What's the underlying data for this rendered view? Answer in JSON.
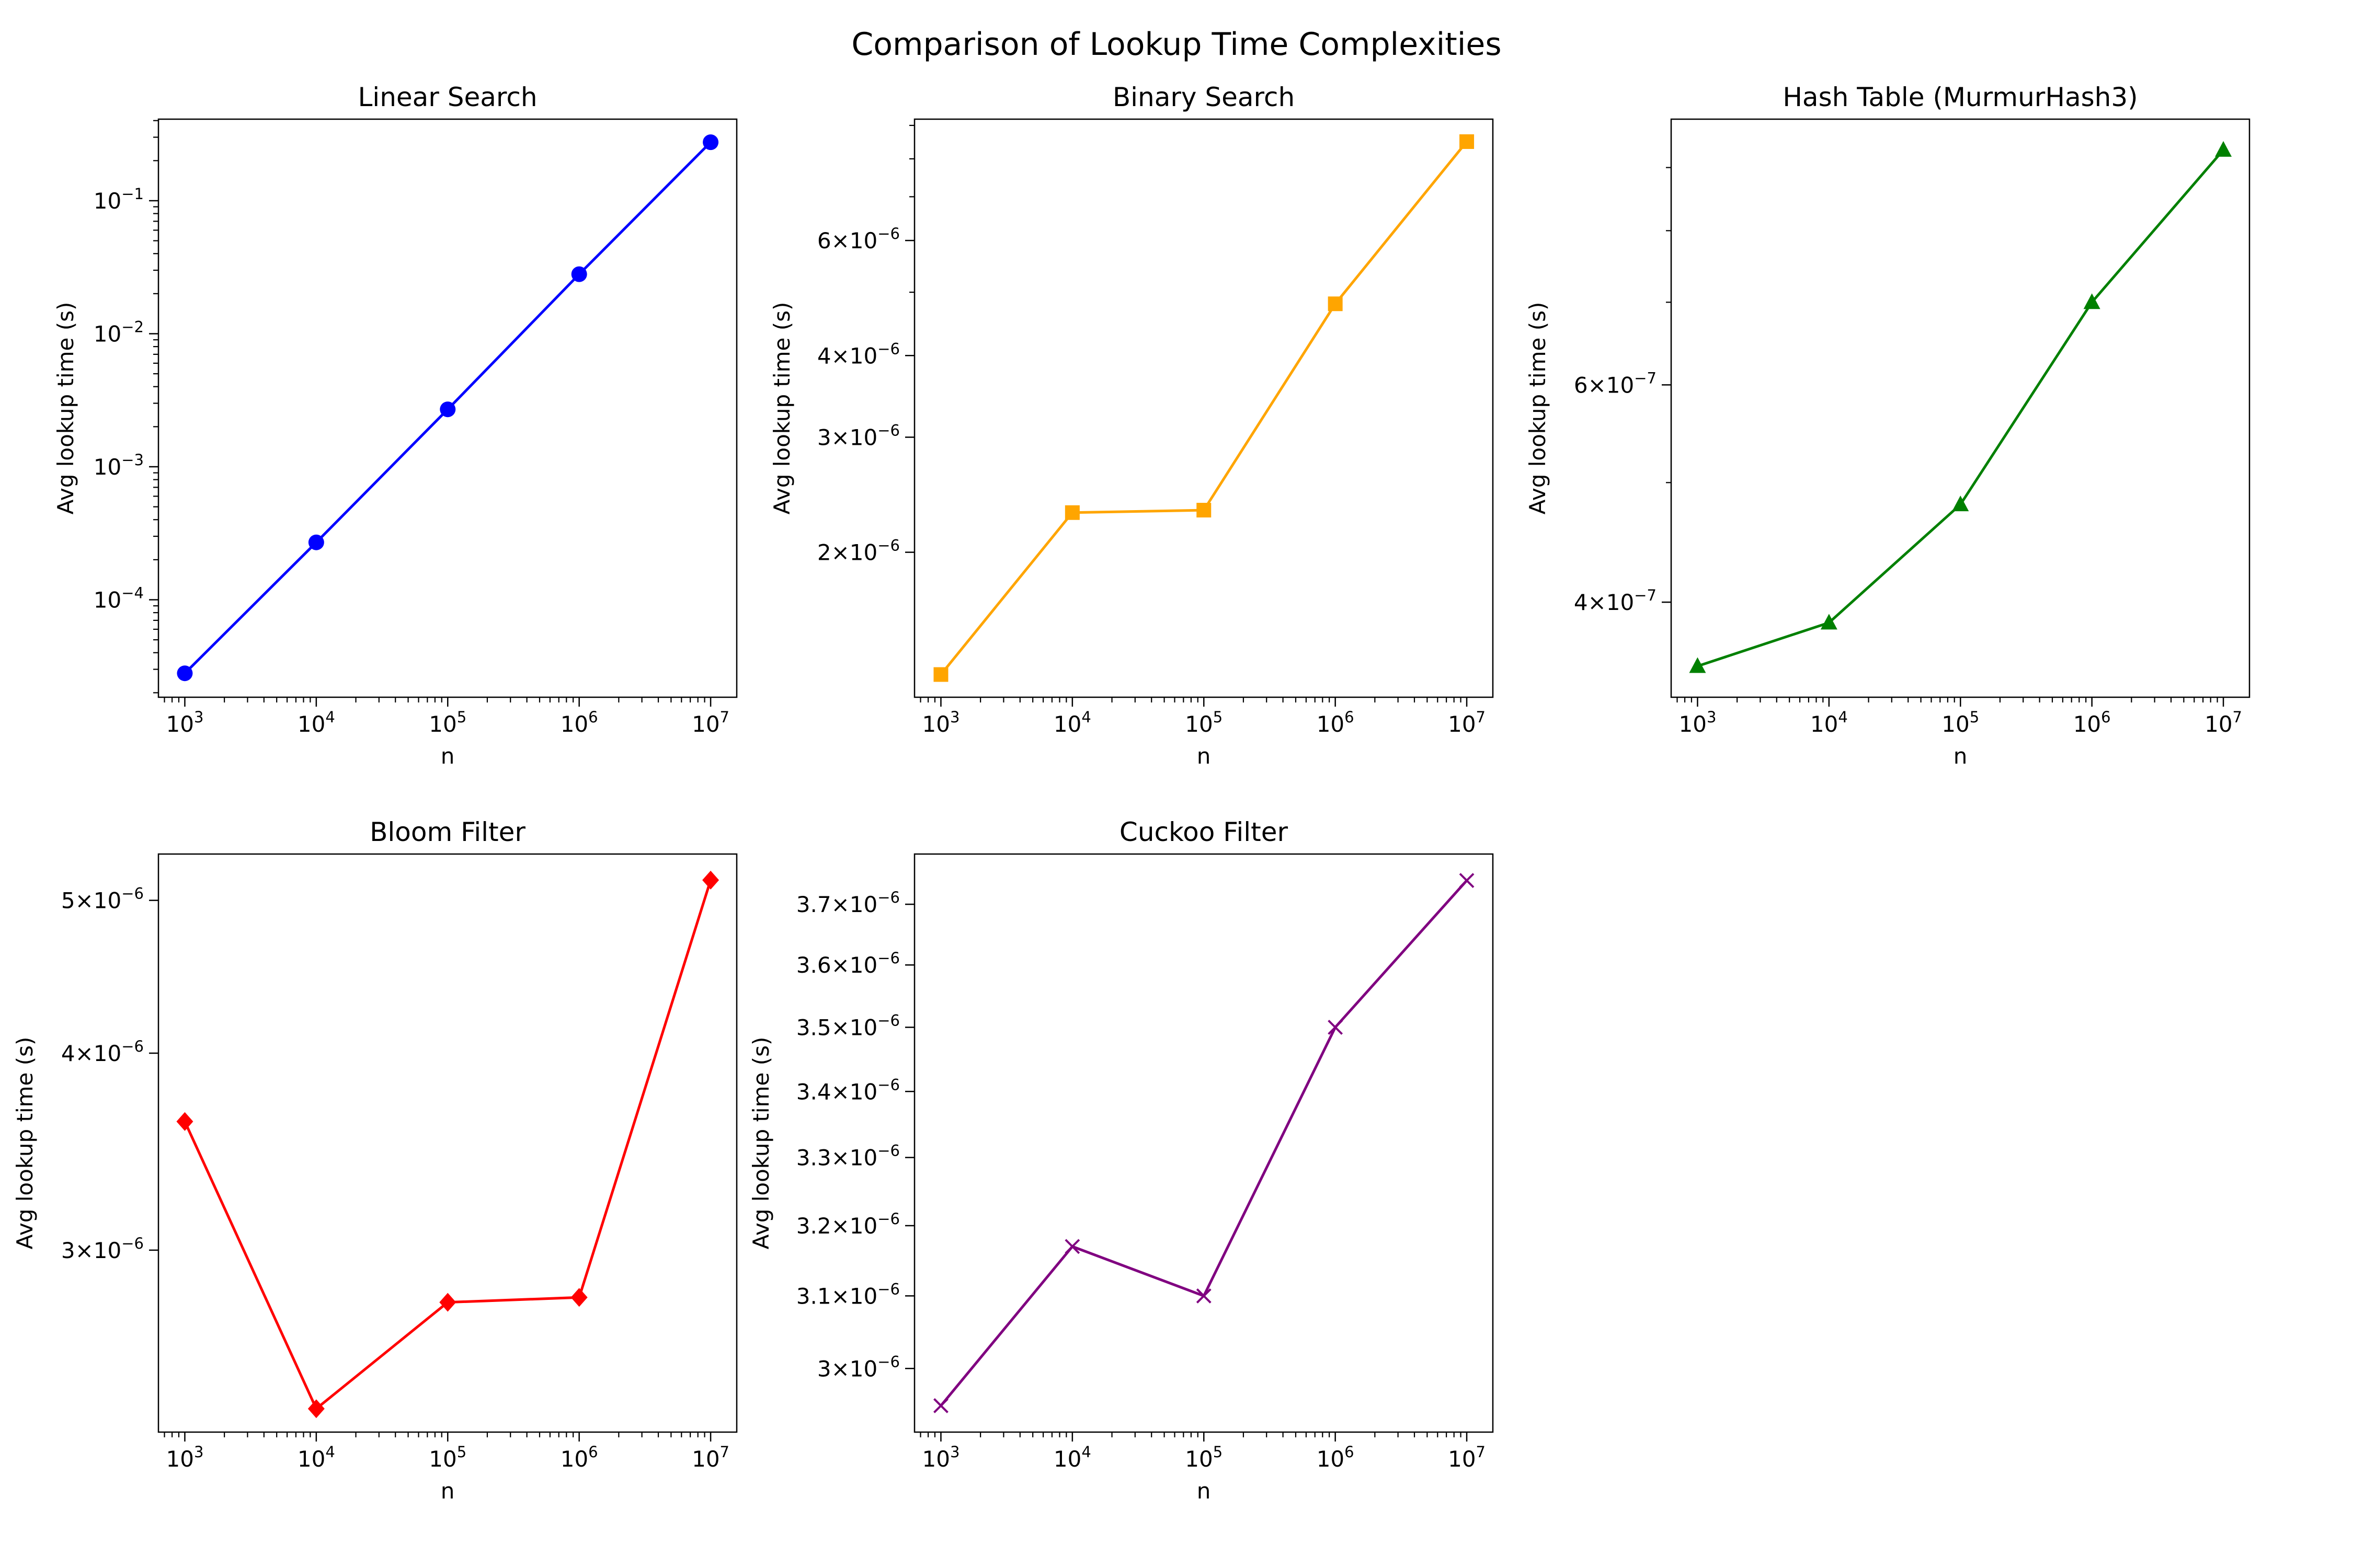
{
  "figure": {
    "suptitle": "Comparison of Lookup Time Complexities"
  },
  "chart_data": [
    {
      "type": "line",
      "title": "Linear Search",
      "xlabel": "n",
      "ylabel": "Avg lookup time (s)",
      "xscale": "log",
      "yscale": "log",
      "grid": false,
      "color": "#0000ff",
      "marker": "circle",
      "x": [
        1000,
        10000,
        100000,
        1000000,
        10000000
      ],
      "y": [
        2.8e-05,
        0.00027,
        0.0027,
        0.028,
        0.275
      ],
      "xlim": [
        630,
        15800000
      ],
      "ylim": [
        1.85e-05,
        0.41
      ],
      "xticks": [
        {
          "base": "10",
          "exp": "3"
        },
        {
          "base": "10",
          "exp": "4"
        },
        {
          "base": "10",
          "exp": "5"
        },
        {
          "base": "10",
          "exp": "6"
        },
        {
          "base": "10",
          "exp": "7"
        }
      ],
      "yticks": [
        {
          "value": 0.0001,
          "base": "10",
          "exp": "−4"
        },
        {
          "value": 0.001,
          "base": "10",
          "exp": "−3"
        },
        {
          "value": 0.01,
          "base": "10",
          "exp": "−2"
        },
        {
          "value": 0.1,
          "base": "10",
          "exp": "−1"
        }
      ]
    },
    {
      "type": "line",
      "title": "Binary Search",
      "xlabel": "n",
      "ylabel": "Avg lookup time (s)",
      "xscale": "log",
      "yscale": "log",
      "grid": false,
      "color": "#ffa500",
      "marker": "square",
      "x": [
        1000,
        10000,
        100000,
        1000000,
        10000000
      ],
      "y": [
        1.3e-06,
        2.3e-06,
        2.32e-06,
        4.8e-06,
        8.5e-06
      ],
      "xlim": [
        630,
        15800000
      ],
      "ylim": [
        1.2e-06,
        9.2e-06
      ],
      "xticks": [
        {
          "base": "10",
          "exp": "3"
        },
        {
          "base": "10",
          "exp": "4"
        },
        {
          "base": "10",
          "exp": "5"
        },
        {
          "base": "10",
          "exp": "6"
        },
        {
          "base": "10",
          "exp": "7"
        }
      ],
      "yticks": [
        {
          "value": 2e-06,
          "coef": "2",
          "base": "10",
          "exp": "−6"
        },
        {
          "value": 3e-06,
          "coef": "3",
          "base": "10",
          "exp": "−6"
        },
        {
          "value": 4e-06,
          "coef": "4",
          "base": "10",
          "exp": "−6"
        },
        {
          "value": 6e-06,
          "coef": "6",
          "base": "10",
          "exp": "−6"
        }
      ]
    },
    {
      "type": "line",
      "title": "Hash Table (MurmurHash3)",
      "xlabel": "n",
      "ylabel": "Avg lookup time (s)",
      "xscale": "log",
      "yscale": "log",
      "grid": false,
      "color": "#008000",
      "marker": "triangle",
      "x": [
        1000,
        10000,
        100000,
        1000000,
        10000000
      ],
      "y": [
        3.55e-07,
        3.85e-07,
        4.8e-07,
        7e-07,
        9.3e-07
      ],
      "xlim": [
        630,
        15800000
      ],
      "ylim": [
        3.35e-07,
        9.85e-07
      ],
      "xticks": [
        {
          "base": "10",
          "exp": "3"
        },
        {
          "base": "10",
          "exp": "4"
        },
        {
          "base": "10",
          "exp": "5"
        },
        {
          "base": "10",
          "exp": "6"
        },
        {
          "base": "10",
          "exp": "7"
        }
      ],
      "yticks": [
        {
          "value": 4e-07,
          "coef": "4",
          "base": "10",
          "exp": "−7"
        },
        {
          "value": 6e-07,
          "coef": "6",
          "base": "10",
          "exp": "−7"
        }
      ]
    },
    {
      "type": "line",
      "title": "Bloom Filter",
      "xlabel": "n",
      "ylabel": "Avg lookup time (s)",
      "xscale": "log",
      "yscale": "log",
      "grid": false,
      "color": "#ff0000",
      "marker": "diamond",
      "x": [
        1000,
        10000,
        100000,
        1000000,
        10000000
      ],
      "y": [
        3.62e-06,
        2.38e-06,
        2.78e-06,
        2.8e-06,
        5.15e-06
      ],
      "xlim": [
        630,
        15800000
      ],
      "ylim": [
        2.3e-06,
        5.35e-06
      ],
      "xticks": [
        {
          "base": "10",
          "exp": "3"
        },
        {
          "base": "10",
          "exp": "4"
        },
        {
          "base": "10",
          "exp": "5"
        },
        {
          "base": "10",
          "exp": "6"
        },
        {
          "base": "10",
          "exp": "7"
        }
      ],
      "yticks": [
        {
          "value": 3e-06,
          "coef": "3",
          "base": "10",
          "exp": "−6"
        },
        {
          "value": 4e-06,
          "coef": "4",
          "base": "10",
          "exp": "−6"
        },
        {
          "value": 5e-06,
          "coef": "5",
          "base": "10",
          "exp": "−6"
        }
      ]
    },
    {
      "type": "line",
      "title": "Cuckoo Filter",
      "xlabel": "n",
      "ylabel": "Avg lookup time (s)",
      "xscale": "log",
      "yscale": "log",
      "grid": false,
      "color": "#800080",
      "marker": "x",
      "x": [
        1000,
        10000,
        100000,
        1000000,
        10000000
      ],
      "y": [
        2.95e-06,
        3.17e-06,
        3.1e-06,
        3.5e-06,
        3.74e-06
      ],
      "xlim": [
        630,
        15800000
      ],
      "ylim": [
        2.915e-06,
        3.785e-06
      ],
      "xticks": [
        {
          "base": "10",
          "exp": "3"
        },
        {
          "base": "10",
          "exp": "4"
        },
        {
          "base": "10",
          "exp": "5"
        },
        {
          "base": "10",
          "exp": "6"
        },
        {
          "base": "10",
          "exp": "7"
        }
      ],
      "yticks": [
        {
          "value": 3e-06,
          "coef": "3",
          "base": "10",
          "exp": "−6"
        },
        {
          "value": 3.1e-06,
          "coef": "3.1",
          "base": "10",
          "exp": "−6"
        },
        {
          "value": 3.2e-06,
          "coef": "3.2",
          "base": "10",
          "exp": "−6"
        },
        {
          "value": 3.3e-06,
          "coef": "3.3",
          "base": "10",
          "exp": "−6"
        },
        {
          "value": 3.4e-06,
          "coef": "3.4",
          "base": "10",
          "exp": "−6"
        },
        {
          "value": 3.5e-06,
          "coef": "3.5",
          "base": "10",
          "exp": "−6"
        },
        {
          "value": 3.6e-06,
          "coef": "3.6",
          "base": "10",
          "exp": "−6"
        },
        {
          "value": 3.7e-06,
          "coef": "3.7",
          "base": "10",
          "exp": "−6"
        }
      ]
    }
  ]
}
